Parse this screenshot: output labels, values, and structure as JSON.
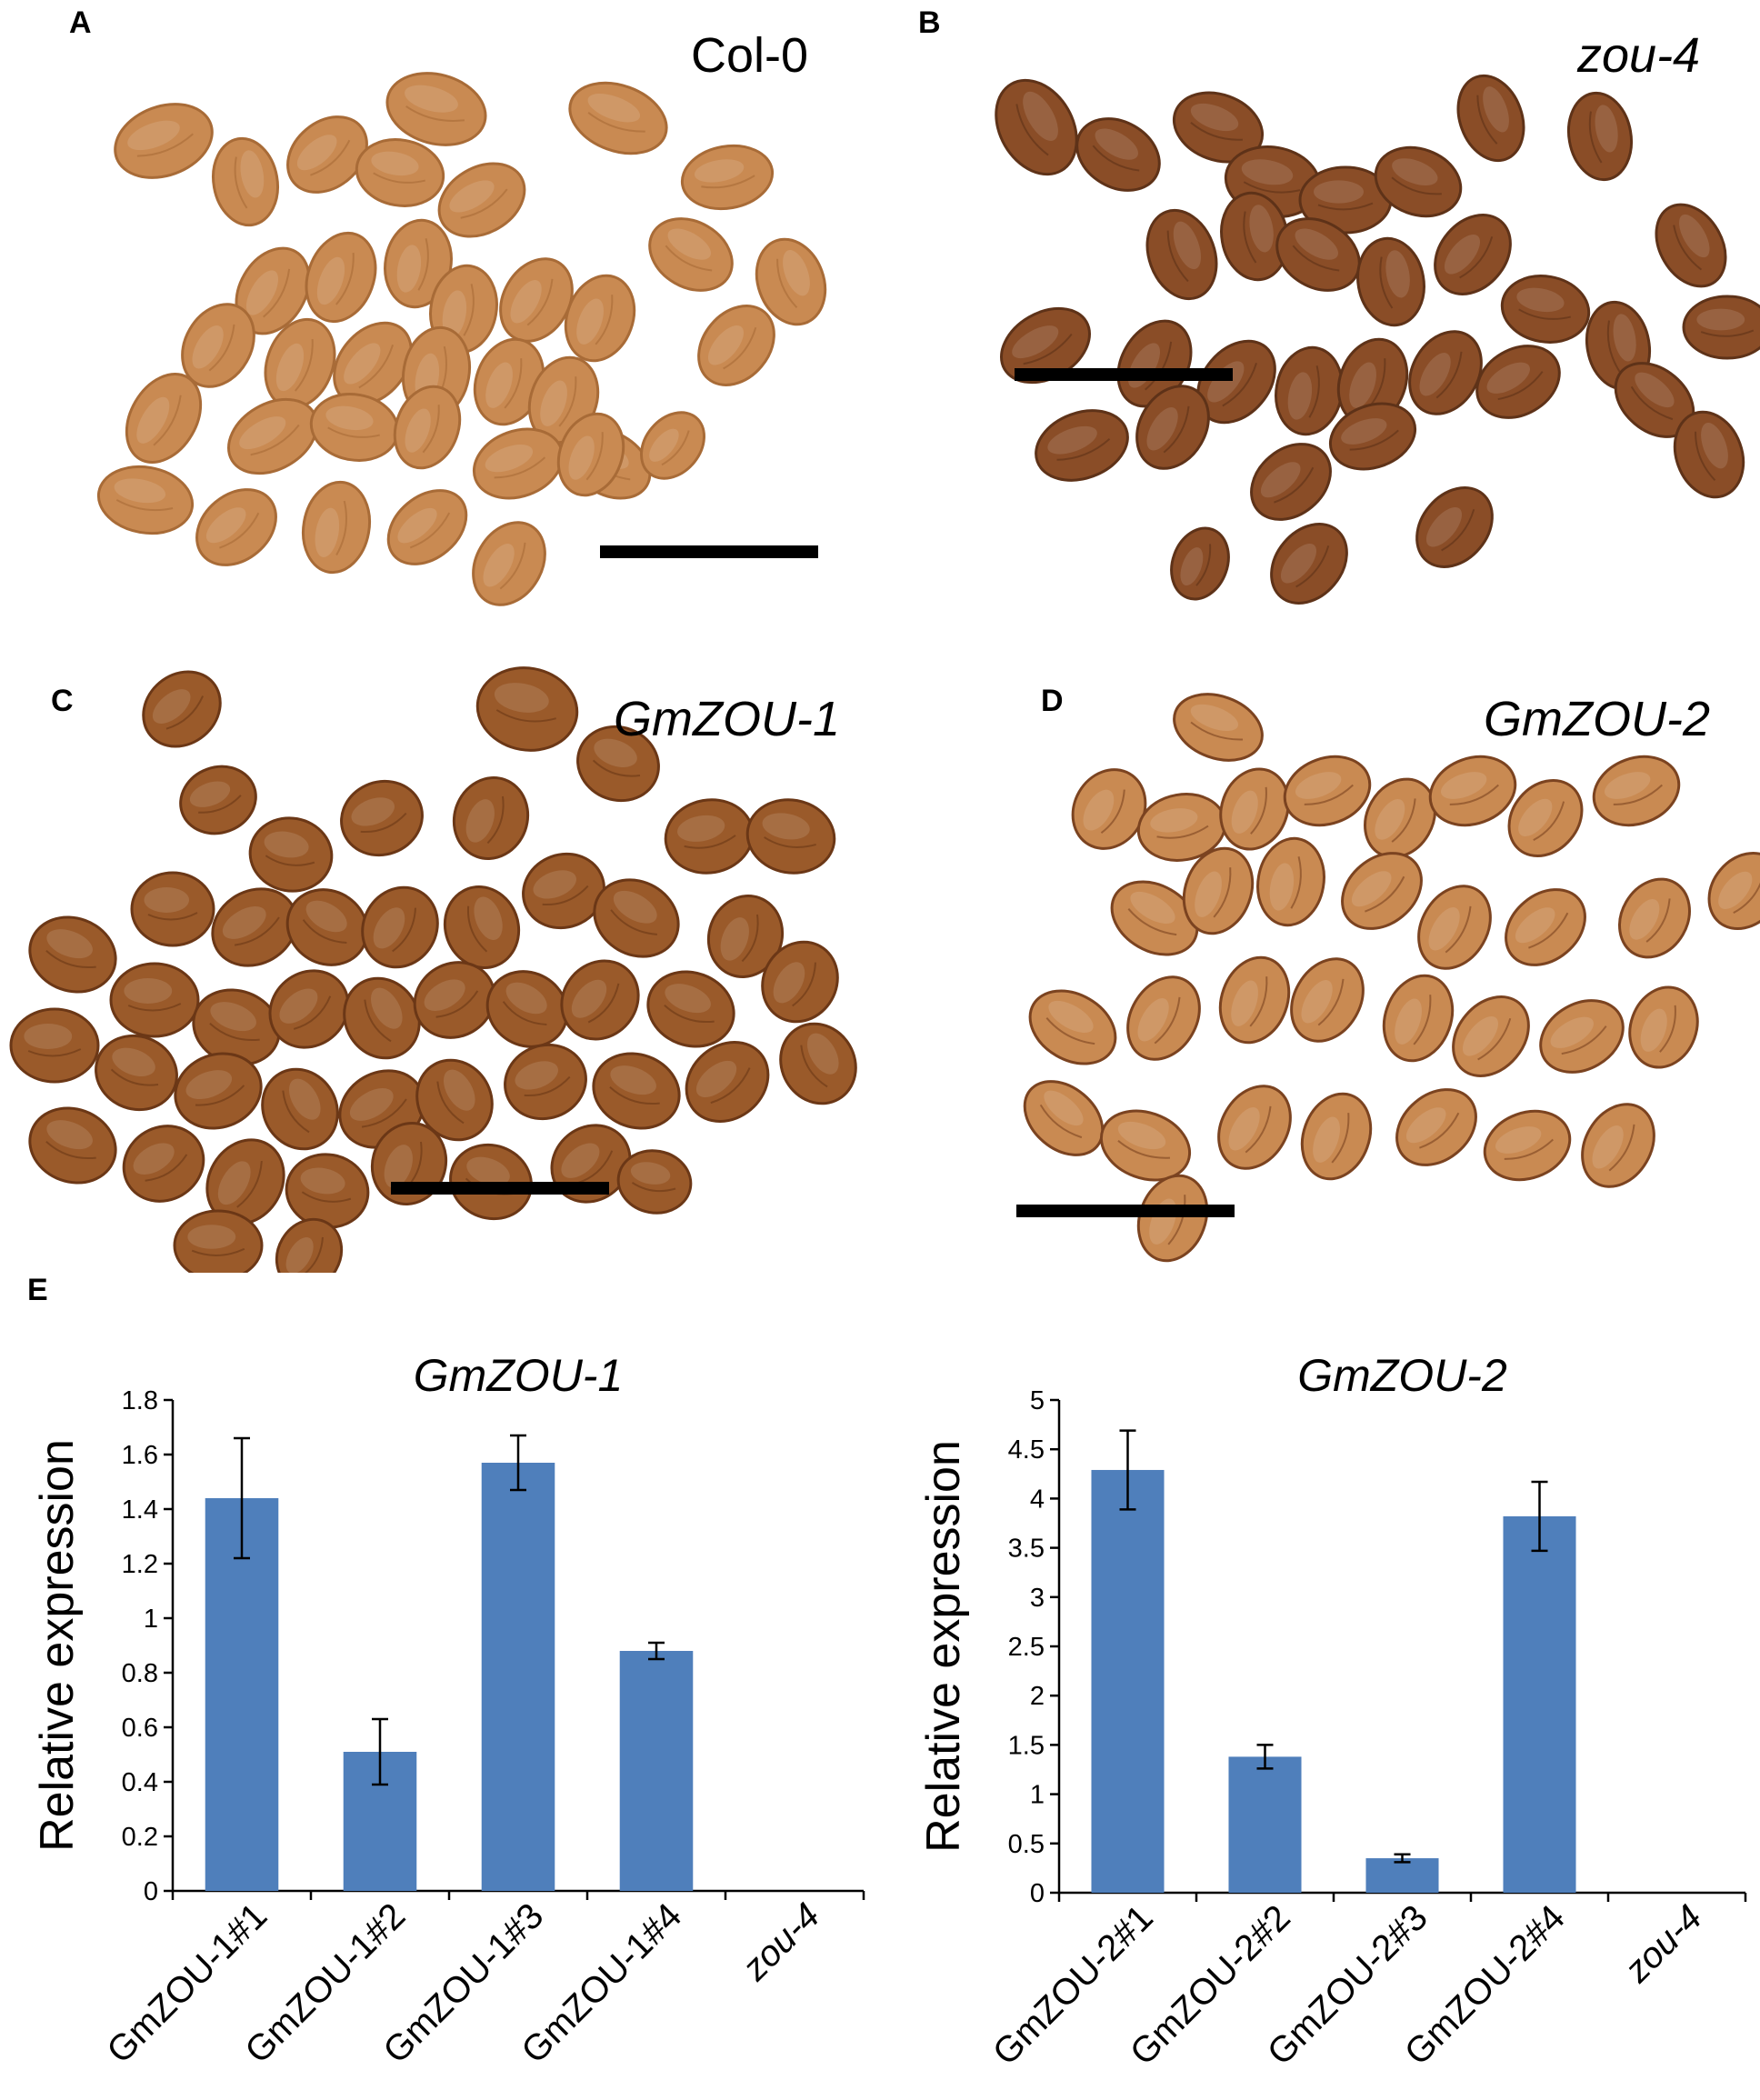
{
  "colors": {
    "seed_light": "#c98a52",
    "seed_dark": "#8a4d27",
    "seed_C": "#9a5a2a",
    "bar": "#4f7fbb",
    "scalebar": "#000000"
  },
  "panels": {
    "A": {
      "letter": "A",
      "label": "Col-0"
    },
    "B": {
      "letter": "B",
      "label": "zou-4"
    },
    "C": {
      "letter": "C",
      "label": "GmZOU-1"
    },
    "D": {
      "letter": "D",
      "label": "GmZOU-2"
    },
    "E": {
      "letter": "E"
    }
  },
  "chart_data": [
    {
      "type": "bar",
      "title": "GmZOU-1",
      "ylabel": "Relative expression",
      "xlabel": "",
      "ylim": [
        0,
        1.8
      ],
      "yticks": [
        "0",
        "0.2",
        "0.4",
        "0.6",
        "0.8",
        "1",
        "1.2",
        "1.4",
        "1.6",
        "1.8"
      ],
      "categories": [
        "GmZOU-1#1",
        "GmZOU-1#2",
        "GmZOU-1#3",
        "GmZOU-1#4",
        "zou-4"
      ],
      "values": [
        1.44,
        0.51,
        1.57,
        0.88,
        0
      ],
      "errors": [
        0.22,
        0.12,
        0.1,
        0.03,
        0
      ],
      "grid": false
    },
    {
      "type": "bar",
      "title": "GmZOU-2",
      "ylabel": "Relative expression",
      "xlabel": "",
      "ylim": [
        0,
        5
      ],
      "yticks": [
        "0",
        "0.5",
        "1",
        "1.5",
        "2",
        "2.5",
        "3",
        "3.5",
        "4",
        "4.5",
        "5"
      ],
      "categories": [
        "GmZOU-2#1",
        "GmZOU-2#2",
        "GmZOU-2#3",
        "GmZOU-2#4",
        "zou-4"
      ],
      "values": [
        4.29,
        1.38,
        0.35,
        3.82,
        0
      ],
      "errors": [
        0.4,
        0.12,
        0.04,
        0.35,
        0
      ],
      "grid": false
    }
  ]
}
